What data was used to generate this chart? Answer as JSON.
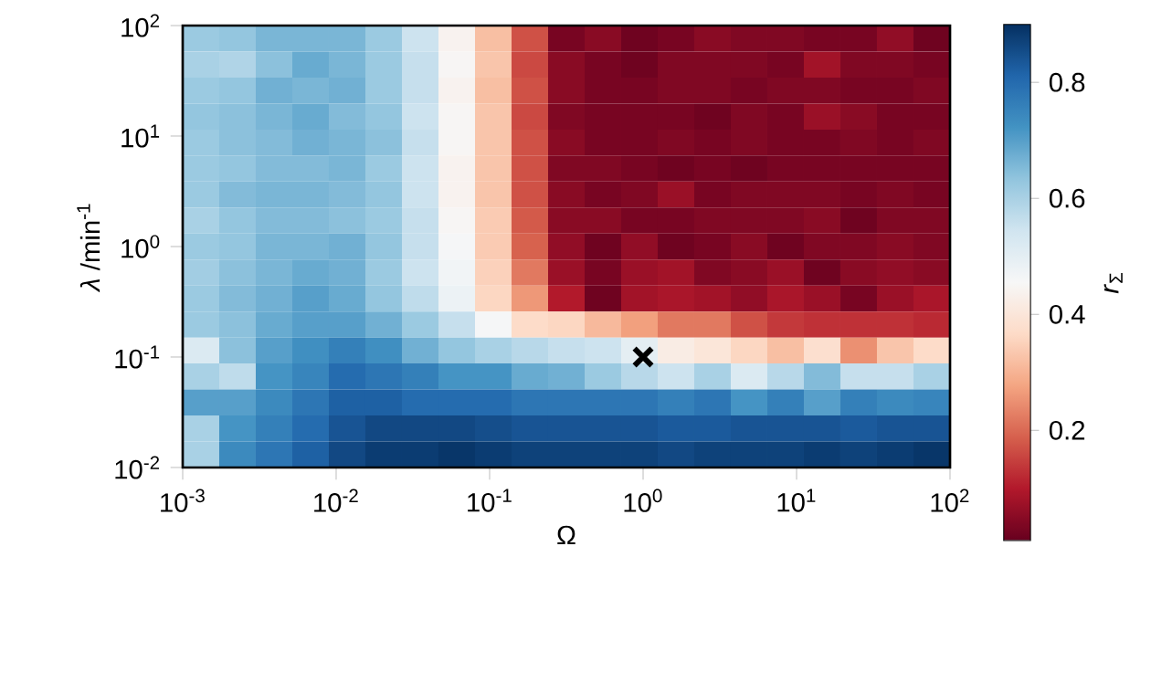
{
  "chart_data": {
    "type": "heatmap",
    "xlabel": "Ω",
    "ylabel": "*λ* /min$^{-1}$",
    "clabel": "*r*$_{Σ}$",
    "log": "xy",
    "xlim": [
      0.001,
      100
    ],
    "ylim": [
      0.01,
      100
    ],
    "xticks": [
      {
        "value": 0.001,
        "label": "10$^{-3}$"
      },
      {
        "value": 0.01,
        "label": "10$^{-2}$"
      },
      {
        "value": 0.1,
        "label": "10$^{-1}$"
      },
      {
        "value": 1,
        "label": "10$^{0}$"
      },
      {
        "value": 10,
        "label": "10$^{1}$"
      },
      {
        "value": 100,
        "label": "10$^{2}$"
      }
    ],
    "yticks": [
      {
        "value": 0.01,
        "label": "10$^{-2}$"
      },
      {
        "value": 0.1,
        "label": "10$^{-1}$"
      },
      {
        "value": 1,
        "label": "10$^{0}$"
      },
      {
        "value": 10,
        "label": "10$^{1}$"
      },
      {
        "value": 100,
        "label": "10$^{2}$"
      }
    ],
    "clim": [
      0.01,
      0.9
    ],
    "cticks": [
      0.2,
      0.4,
      0.6,
      0.8
    ],
    "cells": [
      [
        0.62,
        0.63,
        0.66,
        0.66,
        0.66,
        0.62,
        0.55,
        0.44,
        0.32,
        0.17,
        0.03,
        0.05,
        0.02,
        0.03,
        0.05,
        0.04,
        0.04,
        0.03,
        0.03,
        0.06,
        0.02
      ],
      [
        0.6,
        0.59,
        0.64,
        0.68,
        0.66,
        0.62,
        0.56,
        0.45,
        0.33,
        0.16,
        0.05,
        0.03,
        0.02,
        0.04,
        0.04,
        0.04,
        0.03,
        0.08,
        0.04,
        0.04,
        0.03
      ],
      [
        0.62,
        0.63,
        0.67,
        0.66,
        0.67,
        0.62,
        0.56,
        0.44,
        0.32,
        0.17,
        0.05,
        0.03,
        0.03,
        0.04,
        0.04,
        0.03,
        0.04,
        0.04,
        0.03,
        0.03,
        0.04
      ],
      [
        0.63,
        0.64,
        0.66,
        0.68,
        0.65,
        0.63,
        0.55,
        0.45,
        0.33,
        0.16,
        0.04,
        0.03,
        0.03,
        0.03,
        0.02,
        0.04,
        0.03,
        0.07,
        0.05,
        0.03,
        0.03
      ],
      [
        0.62,
        0.64,
        0.65,
        0.67,
        0.66,
        0.64,
        0.56,
        0.45,
        0.33,
        0.17,
        0.05,
        0.03,
        0.03,
        0.04,
        0.03,
        0.04,
        0.03,
        0.03,
        0.04,
        0.03,
        0.04
      ],
      [
        0.62,
        0.63,
        0.65,
        0.65,
        0.66,
        0.62,
        0.55,
        0.44,
        0.33,
        0.17,
        0.04,
        0.04,
        0.03,
        0.02,
        0.03,
        0.02,
        0.03,
        0.03,
        0.03,
        0.03,
        0.03
      ],
      [
        0.62,
        0.65,
        0.66,
        0.66,
        0.65,
        0.63,
        0.55,
        0.44,
        0.33,
        0.17,
        0.05,
        0.03,
        0.04,
        0.07,
        0.03,
        0.04,
        0.04,
        0.04,
        0.03,
        0.04,
        0.03
      ],
      [
        0.6,
        0.63,
        0.65,
        0.65,
        0.64,
        0.62,
        0.56,
        0.45,
        0.34,
        0.18,
        0.05,
        0.05,
        0.03,
        0.03,
        0.04,
        0.04,
        0.04,
        0.05,
        0.02,
        0.04,
        0.04
      ],
      [
        0.62,
        0.63,
        0.66,
        0.66,
        0.67,
        0.63,
        0.56,
        0.46,
        0.34,
        0.19,
        0.06,
        0.02,
        0.06,
        0.02,
        0.03,
        0.05,
        0.02,
        0.04,
        0.04,
        0.05,
        0.04
      ],
      [
        0.61,
        0.64,
        0.66,
        0.68,
        0.67,
        0.62,
        0.55,
        0.47,
        0.35,
        0.22,
        0.07,
        0.03,
        0.07,
        0.08,
        0.04,
        0.05,
        0.07,
        0.02,
        0.05,
        0.06,
        0.05
      ],
      [
        0.62,
        0.65,
        0.67,
        0.7,
        0.68,
        0.63,
        0.57,
        0.48,
        0.36,
        0.26,
        0.1,
        0.02,
        0.08,
        0.09,
        0.08,
        0.06,
        0.09,
        0.07,
        0.03,
        0.07,
        0.09
      ],
      [
        0.62,
        0.64,
        0.68,
        0.7,
        0.7,
        0.67,
        0.62,
        0.56,
        0.46,
        0.37,
        0.36,
        0.31,
        0.27,
        0.22,
        0.22,
        0.17,
        0.14,
        0.13,
        0.13,
        0.13,
        0.12
      ],
      [
        0.52,
        0.64,
        0.7,
        0.73,
        0.76,
        0.73,
        0.67,
        0.63,
        0.6,
        0.58,
        0.56,
        0.55,
        0.5,
        0.42,
        0.4,
        0.36,
        0.32,
        0.38,
        0.25,
        0.33,
        0.37
      ],
      [
        0.6,
        0.57,
        0.72,
        0.75,
        0.8,
        0.78,
        0.76,
        0.72,
        0.72,
        0.68,
        0.67,
        0.62,
        0.58,
        0.55,
        0.6,
        0.52,
        0.58,
        0.65,
        0.56,
        0.56,
        0.6
      ],
      [
        0.7,
        0.7,
        0.74,
        0.78,
        0.82,
        0.82,
        0.8,
        0.8,
        0.8,
        0.78,
        0.78,
        0.78,
        0.78,
        0.76,
        0.78,
        0.72,
        0.76,
        0.7,
        0.76,
        0.74,
        0.75
      ],
      [
        0.6,
        0.72,
        0.76,
        0.8,
        0.84,
        0.86,
        0.86,
        0.86,
        0.85,
        0.84,
        0.84,
        0.84,
        0.84,
        0.83,
        0.83,
        0.84,
        0.84,
        0.84,
        0.83,
        0.84,
        0.84
      ],
      [
        0.6,
        0.74,
        0.78,
        0.82,
        0.86,
        0.88,
        0.88,
        0.89,
        0.88,
        0.87,
        0.87,
        0.87,
        0.87,
        0.86,
        0.87,
        0.87,
        0.87,
        0.88,
        0.87,
        0.88,
        0.89
      ]
    ],
    "series": [
      {
        "type": "scatter",
        "x": [
          1
        ],
        "values": [
          0.1
        ],
        "color": "#000000"
      }
    ],
    "marker": "cross"
  }
}
